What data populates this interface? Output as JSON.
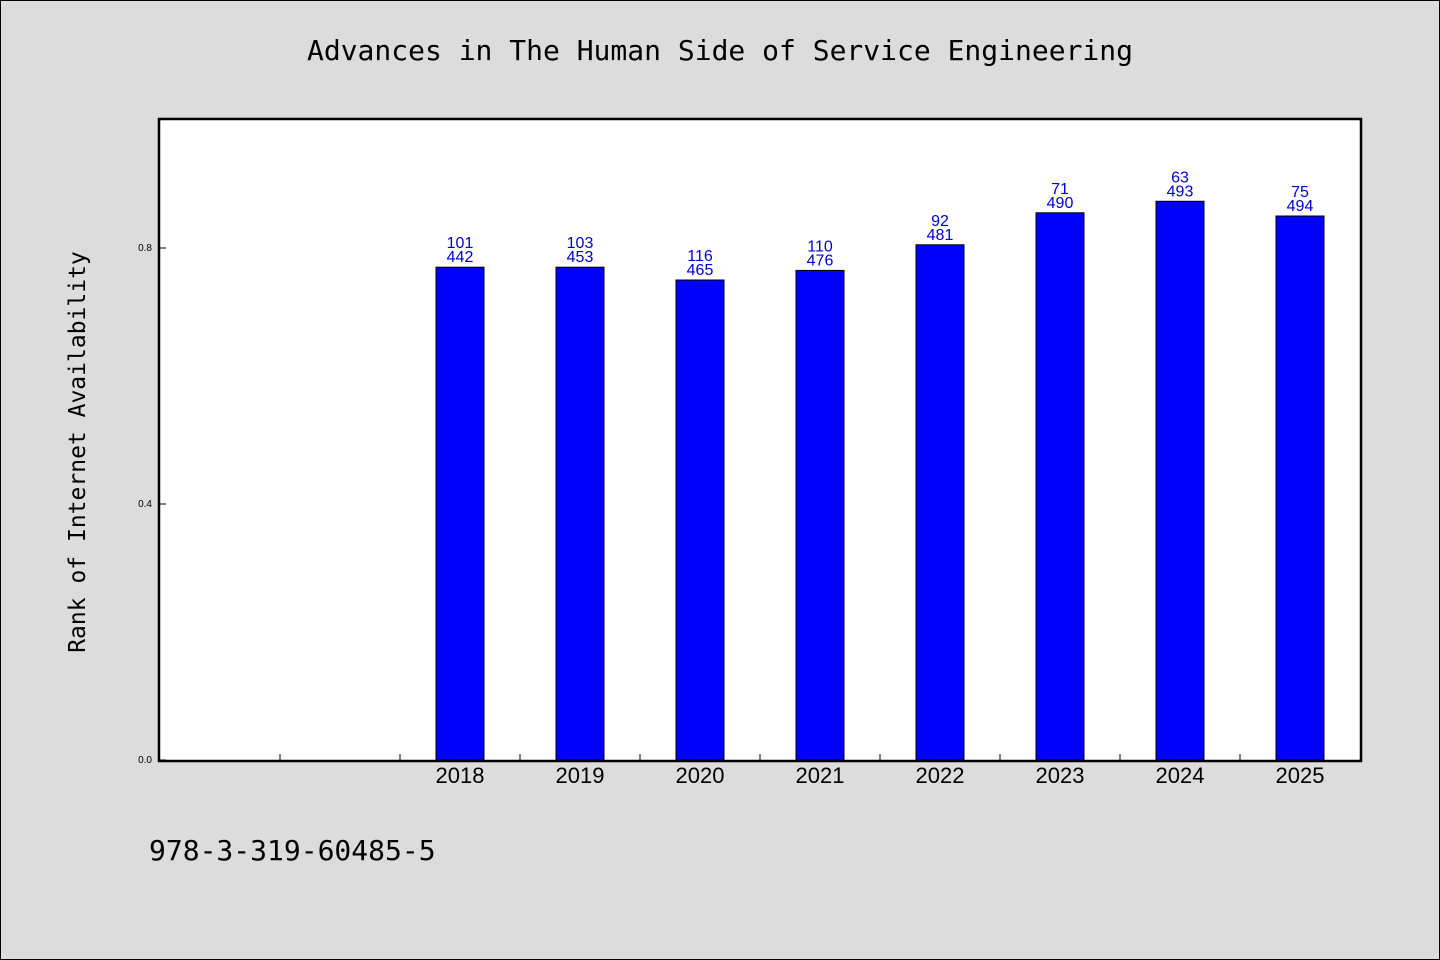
{
  "chart_data": {
    "type": "bar",
    "title": "Advances in The Human Side of Service Engineering",
    "xlabel": "",
    "ylabel": "Rank of Internet Availability",
    "categories": [
      "",
      "",
      "2018",
      "2019",
      "2020",
      "2021",
      "2022",
      "2023",
      "2024",
      "2025"
    ],
    "values": [
      null,
      null,
      0.77,
      0.77,
      0.75,
      0.765,
      0.805,
      0.855,
      0.873,
      0.85
    ],
    "labels_top": [
      "",
      "",
      "101",
      "103",
      "116",
      "110",
      "92",
      "71",
      "63",
      "75"
    ],
    "labels_bottom": [
      "",
      "",
      "442",
      "453",
      "465",
      "476",
      "481",
      "490",
      "493",
      "494"
    ],
    "yticks": [
      "0.0",
      "0.4",
      "0.8"
    ],
    "ytick_values": [
      0.0,
      0.4,
      0.8
    ],
    "ylim": [
      0.0,
      1.0
    ],
    "grid": false,
    "colors": {
      "bar_fill": "#0000ff",
      "bar_stroke": "#000000",
      "data_label": "#0000cc",
      "background": "#dcdcdc",
      "plot_background": "#ffffff"
    }
  },
  "footer": {
    "code": "978-3-319-60485-5"
  }
}
